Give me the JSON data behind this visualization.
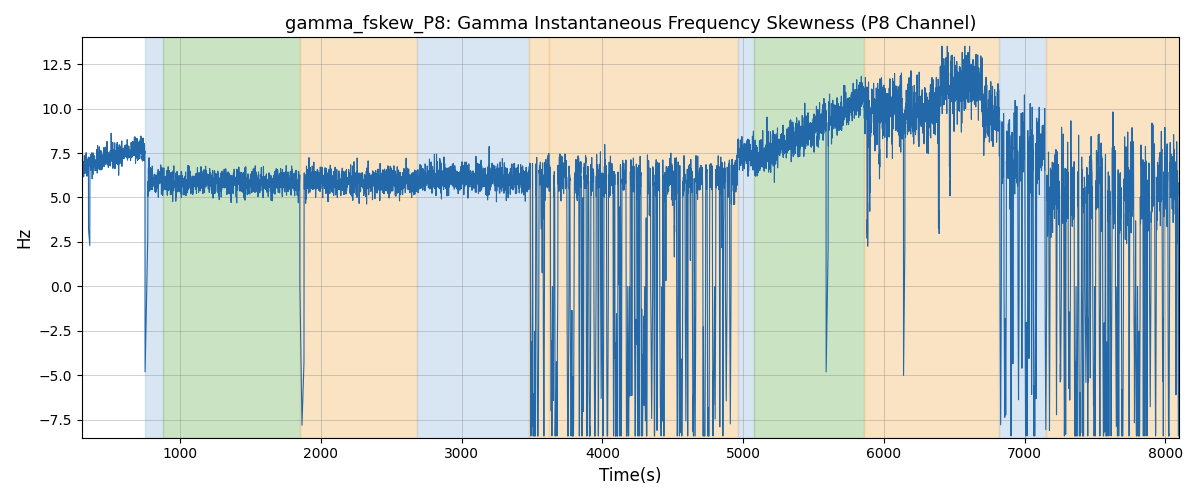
{
  "title": "gamma_fskew_P8: Gamma Instantaneous Frequency Skewness (P8 Channel)",
  "xlabel": "Time(s)",
  "ylabel": "Hz",
  "xlim": [
    300,
    8100
  ],
  "ylim": [
    -8.5,
    14.0
  ],
  "yticks": [
    -7.5,
    -5.0,
    -2.5,
    0.0,
    2.5,
    5.0,
    7.5,
    10.0,
    12.5
  ],
  "xticks": [
    1000,
    2000,
    3000,
    4000,
    5000,
    6000,
    7000,
    8000
  ],
  "line_color": "#2368a8",
  "line_width": 0.8,
  "bg_regions": [
    {
      "xmin": 750,
      "xmax": 880,
      "color": "#b8d0e8",
      "alpha": 0.55
    },
    {
      "xmin": 880,
      "xmax": 1850,
      "color": "#a0cc90",
      "alpha": 0.55
    },
    {
      "xmin": 1850,
      "xmax": 2680,
      "color": "#f5cc90",
      "alpha": 0.55
    },
    {
      "xmin": 2680,
      "xmax": 3480,
      "color": "#b8d0e8",
      "alpha": 0.55
    },
    {
      "xmin": 3480,
      "xmax": 3620,
      "color": "#f5cc90",
      "alpha": 0.55
    },
    {
      "xmin": 3620,
      "xmax": 4960,
      "color": "#f5cc90",
      "alpha": 0.55
    },
    {
      "xmin": 4960,
      "xmax": 5080,
      "color": "#b8d0e8",
      "alpha": 0.55
    },
    {
      "xmin": 5080,
      "xmax": 5860,
      "color": "#a0cc90",
      "alpha": 0.55
    },
    {
      "xmin": 5860,
      "xmax": 6820,
      "color": "#f5cc90",
      "alpha": 0.55
    },
    {
      "xmin": 6820,
      "xmax": 7150,
      "color": "#b8d0e8",
      "alpha": 0.55
    },
    {
      "xmin": 7150,
      "xmax": 8100,
      "color": "#f5cc90",
      "alpha": 0.55
    }
  ],
  "seed": 42,
  "figsize": [
    12,
    5
  ],
  "dpi": 100
}
